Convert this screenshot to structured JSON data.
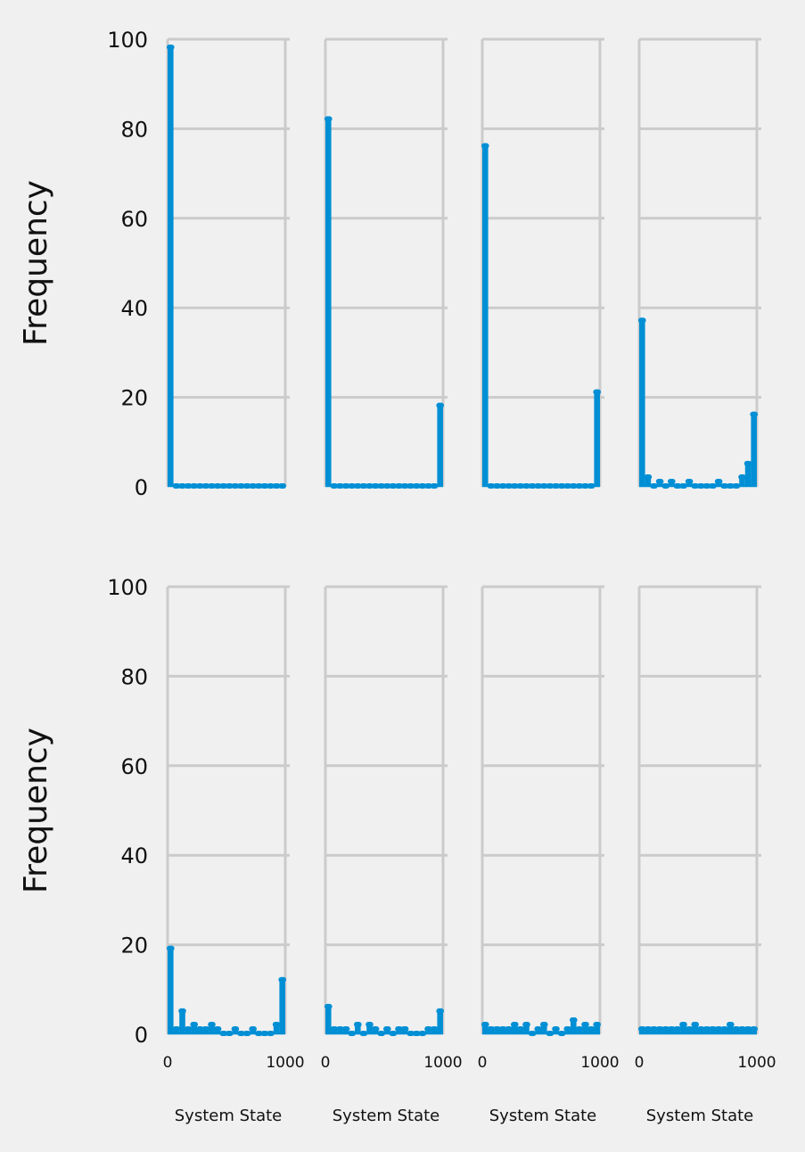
{
  "chart_data": {
    "type": "histogram-grid",
    "rows": 2,
    "cols": 4,
    "color": "#008fd5",
    "grid_color": "#cbcbcb",
    "background": "#f0f0f0",
    "ylabel": "Frequency",
    "xlabel": "System State",
    "ylim": [
      0,
      100
    ],
    "yticks": [
      "0",
      "20",
      "40",
      "60",
      "80",
      "100"
    ],
    "xlim": [
      0,
      1000
    ],
    "xticks": [
      "0",
      "1000"
    ],
    "bin_width": 50,
    "panels": [
      {
        "row": 0,
        "col": 0,
        "values": [
          98,
          0,
          0,
          0,
          0,
          0,
          0,
          0,
          0,
          0,
          0,
          0,
          0,
          0,
          0,
          0,
          0,
          0,
          0,
          0
        ]
      },
      {
        "row": 0,
        "col": 1,
        "values": [
          82,
          0,
          0,
          0,
          0,
          0,
          0,
          0,
          0,
          0,
          0,
          0,
          0,
          0,
          0,
          0,
          0,
          0,
          0,
          18
        ]
      },
      {
        "row": 0,
        "col": 2,
        "values": [
          76,
          0,
          0,
          0,
          0,
          0,
          0,
          0,
          0,
          0,
          0,
          0,
          0,
          0,
          0,
          0,
          0,
          0,
          0,
          21
        ]
      },
      {
        "row": 0,
        "col": 3,
        "values": [
          37,
          2,
          0,
          1,
          0,
          1,
          0,
          0,
          1,
          0,
          0,
          0,
          0,
          1,
          0,
          0,
          0,
          2,
          5,
          16
        ]
      },
      {
        "row": 1,
        "col": 0,
        "values": [
          19,
          1,
          5,
          1,
          2,
          1,
          1,
          2,
          1,
          0,
          0,
          1,
          0,
          0,
          1,
          0,
          0,
          0,
          2,
          12
        ]
      },
      {
        "row": 1,
        "col": 1,
        "values": [
          6,
          1,
          1,
          1,
          0,
          2,
          0,
          2,
          1,
          0,
          1,
          0,
          1,
          1,
          0,
          0,
          0,
          1,
          1,
          5
        ]
      },
      {
        "row": 1,
        "col": 2,
        "values": [
          2,
          1,
          1,
          1,
          1,
          2,
          1,
          2,
          0,
          1,
          2,
          0,
          1,
          0,
          1,
          3,
          1,
          2,
          1,
          2
        ]
      },
      {
        "row": 1,
        "col": 3,
        "values": [
          1,
          1,
          1,
          1,
          1,
          1,
          1,
          2,
          1,
          2,
          1,
          1,
          1,
          1,
          1,
          2,
          1,
          1,
          1,
          1
        ]
      }
    ]
  }
}
